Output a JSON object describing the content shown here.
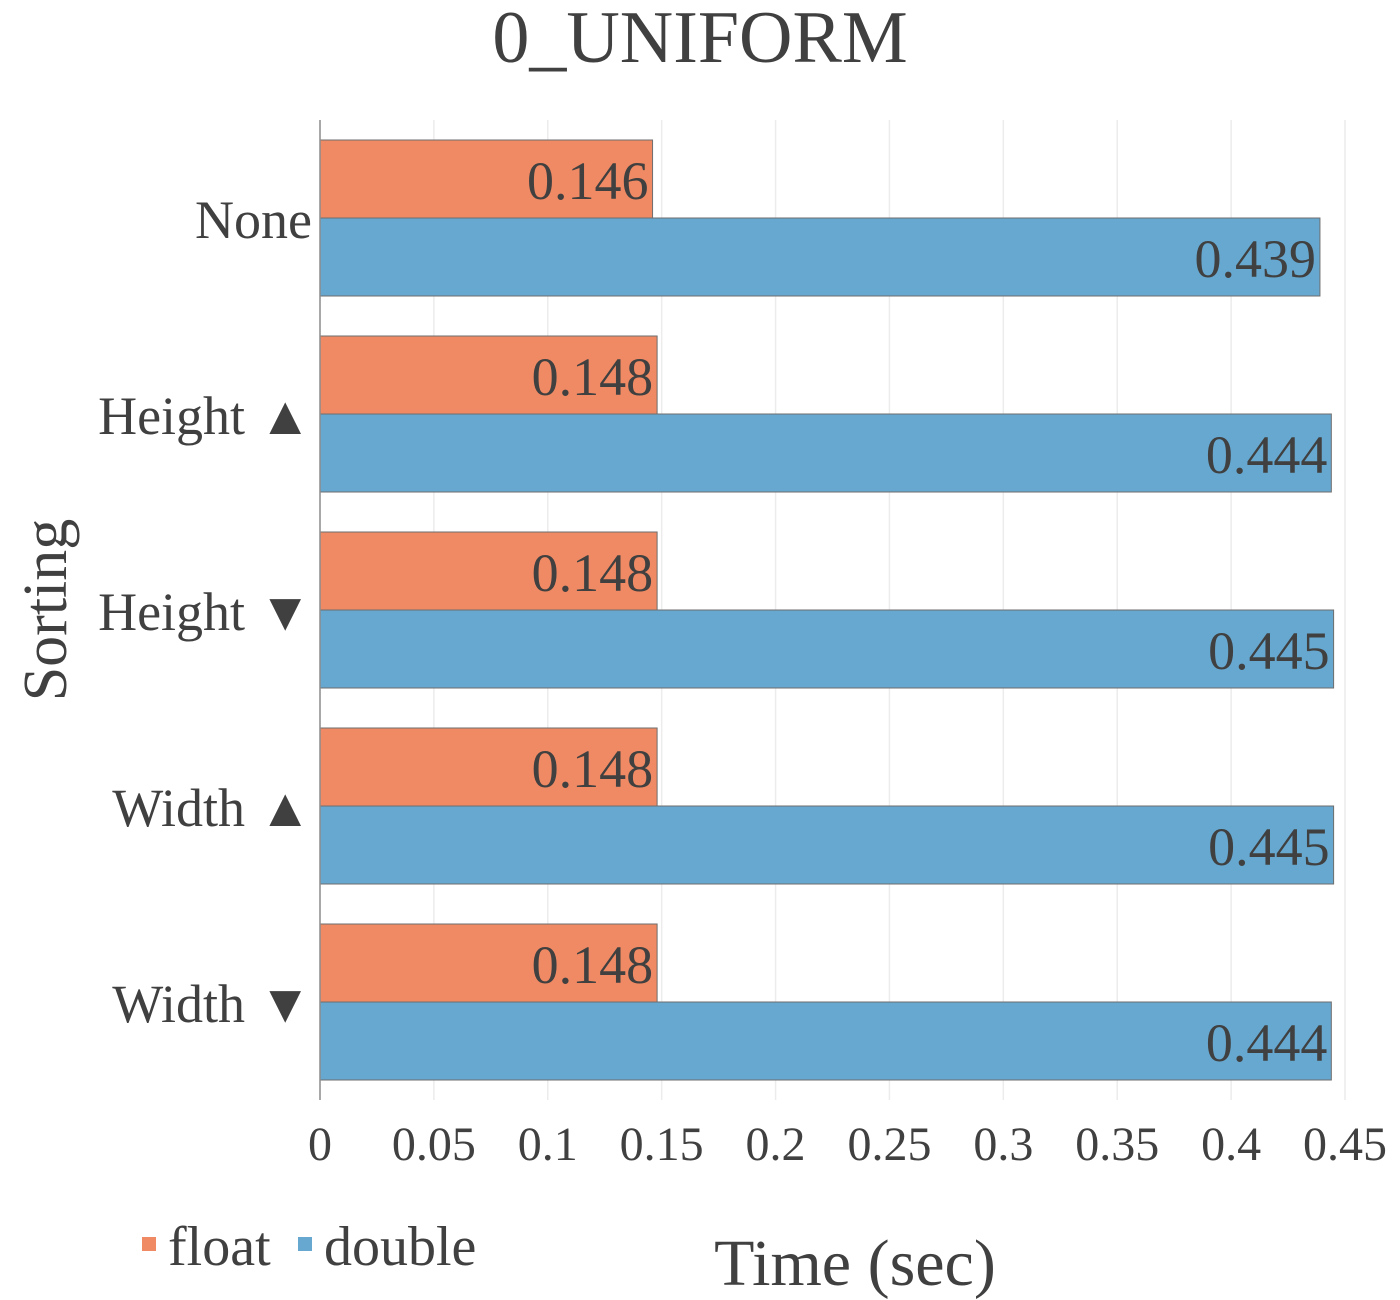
{
  "chart_data": {
    "type": "bar",
    "orientation": "horizontal",
    "title": "0_UNIFORM",
    "xlabel": "Time (sec)",
    "ylabel": "Sorting",
    "categories": [
      "None",
      "Height ▲",
      "Height ▼",
      "Width ▲",
      "Width ▼"
    ],
    "series": [
      {
        "name": "float",
        "color": "#F08A64",
        "values": [
          0.146,
          0.148,
          0.148,
          0.148,
          0.148
        ],
        "labels": [
          "0.146",
          "0.148",
          "0.148",
          "0.148",
          "0.148"
        ]
      },
      {
        "name": "double",
        "color": "#67A8D0",
        "values": [
          0.439,
          0.444,
          0.445,
          0.445,
          0.444
        ],
        "labels": [
          "0.439",
          "0.444",
          "0.445",
          "0.445",
          "0.444"
        ]
      }
    ],
    "xlim": [
      0,
      0.45
    ],
    "xticks": [
      0,
      0.05,
      0.1,
      0.15,
      0.2,
      0.25,
      0.3,
      0.35,
      0.4,
      0.45
    ],
    "xtick_labels": [
      "0",
      "0.05",
      "0.1",
      "0.15",
      "0.2",
      "0.25",
      "0.3",
      "0.35",
      "0.4",
      "0.45"
    ],
    "grid": true,
    "legend_position": "bottom-left"
  }
}
